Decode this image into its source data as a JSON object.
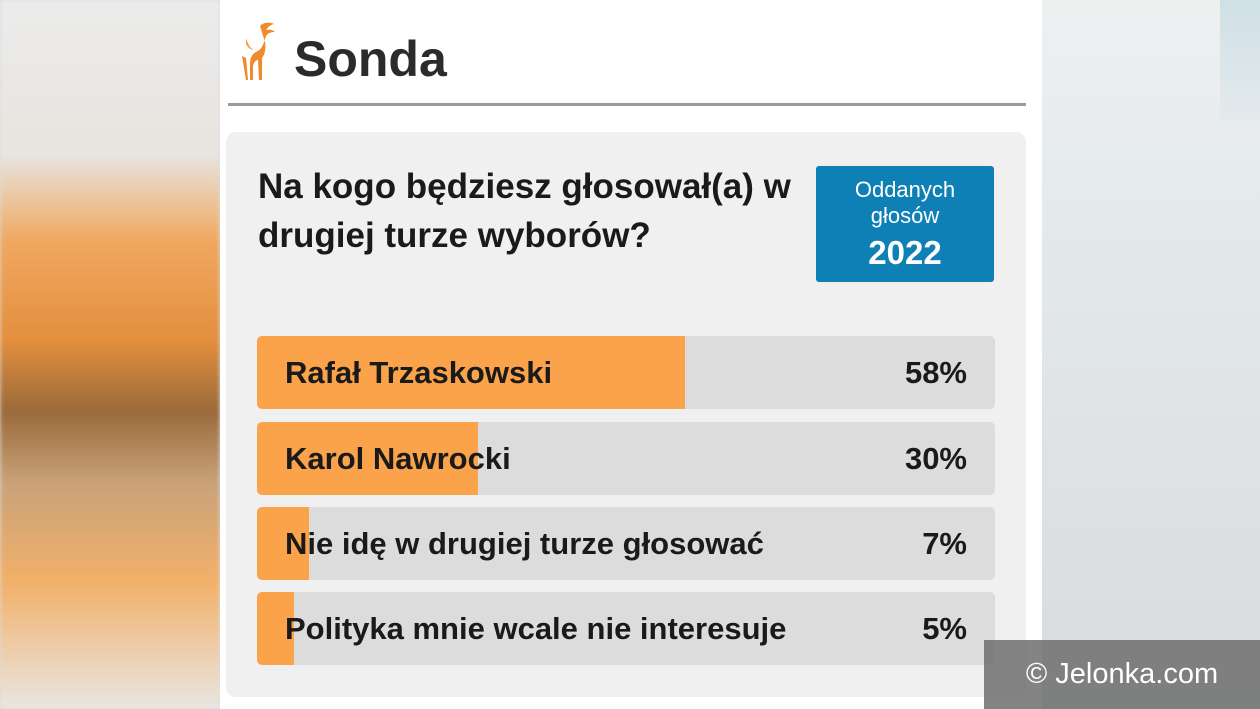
{
  "header": {
    "title": "Sonda"
  },
  "poll": {
    "question": "Na kogo będziesz głosował(a) w drugiej turze wyborów?",
    "votes_label_1": "Oddanych",
    "votes_label_2": "głosów",
    "votes_count": "2022",
    "answers": [
      {
        "label": "Rafał Trzaskowski",
        "percent_text": "58%",
        "percent": 58
      },
      {
        "label": "Karol Nawrocki",
        "percent_text": "30%",
        "percent": 30
      },
      {
        "label": "Nie idę w drugiej turze głosować",
        "percent_text": "7%",
        "percent": 7
      },
      {
        "label": "Polityka mnie wcale nie interesuje",
        "percent_text": "5%",
        "percent": 5
      }
    ]
  },
  "watermark": "© Jelonka.com",
  "colors": {
    "accent": "#fba34b",
    "votes_box": "#0f80b5",
    "track": "#dcdcdc",
    "panel": "#f0f0f0"
  },
  "icons": {
    "logo": "deer-logo-icon"
  }
}
